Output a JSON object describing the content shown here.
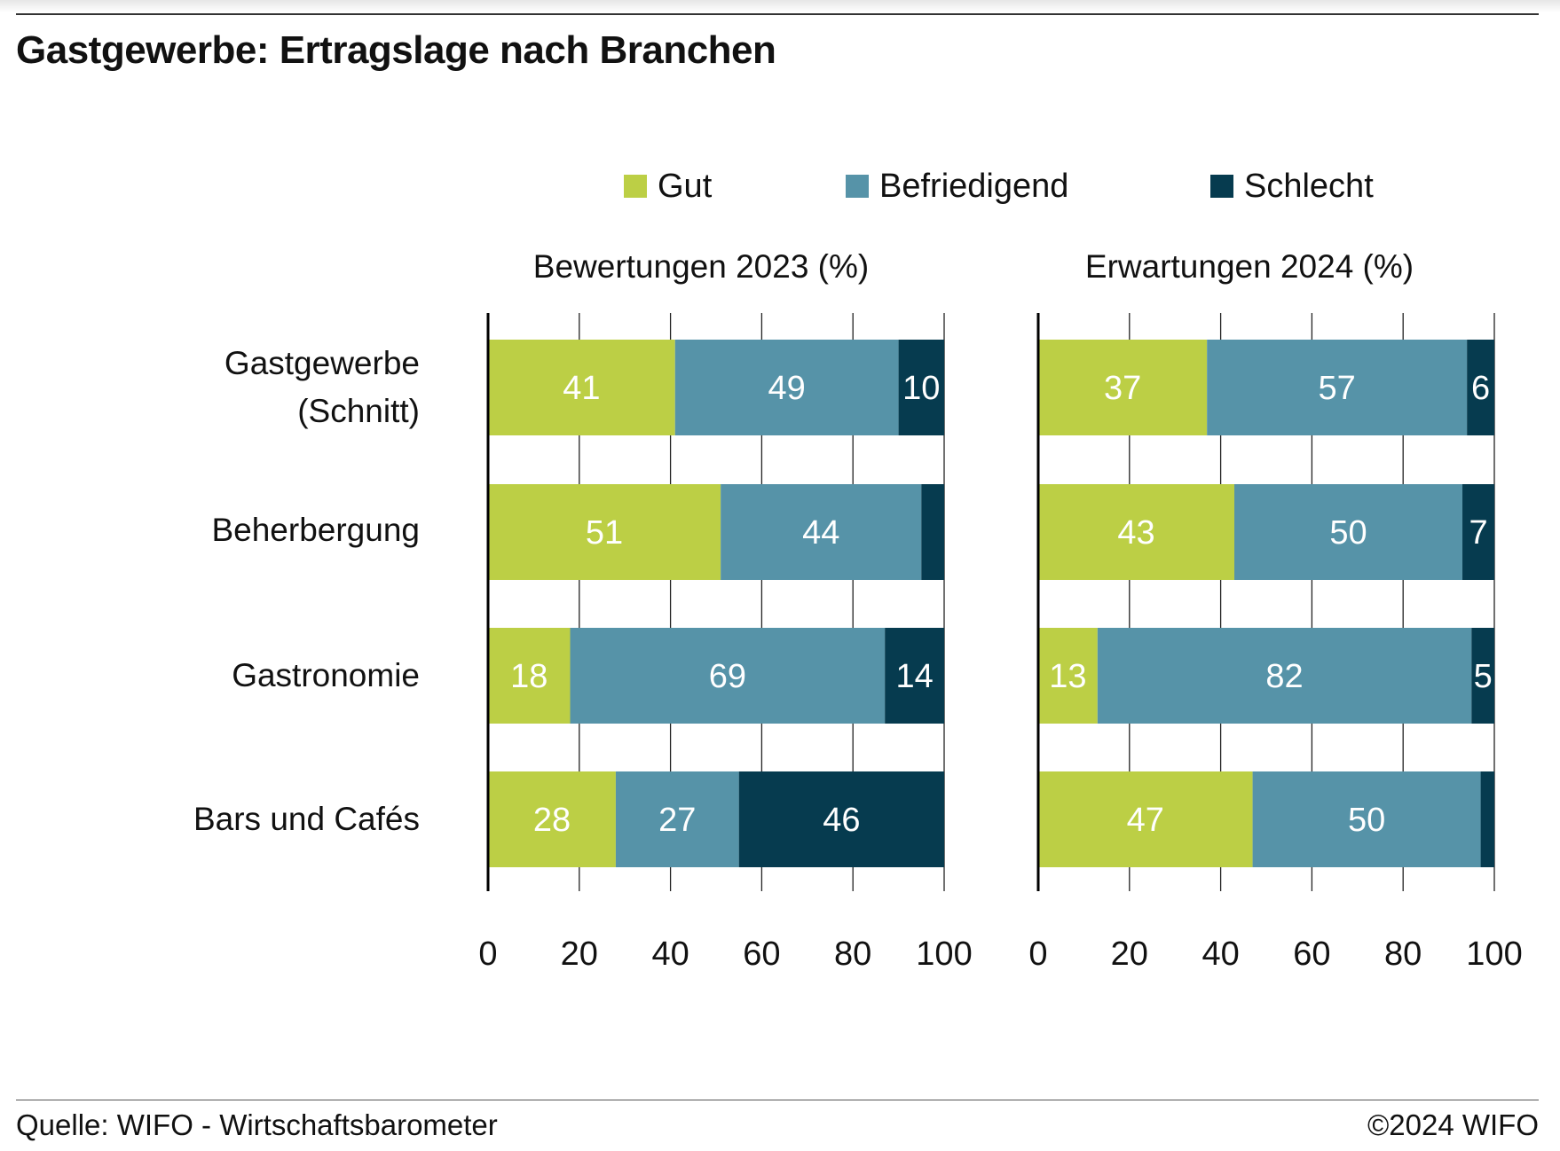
{
  "title": "Gastgewerbe: Ertragslage nach Branchen",
  "footer": {
    "source": "Quelle: WIFO - Wirtschaftsbarometer",
    "copyright": "©2024 WIFO"
  },
  "legend": [
    {
      "label": "Gut",
      "color": "#bccf45"
    },
    {
      "label": "Befriedigend",
      "color": "#5693a8"
    },
    {
      "label": "Schlecht",
      "color": "#063b4f"
    }
  ],
  "categories_display": [
    "Gastgewerbe\n(Schnitt)",
    "Beherbergung",
    "Gastronomie",
    "Bars und Cafés"
  ],
  "chart_data": [
    {
      "type": "bar",
      "orientation": "horizontal",
      "stacked": true,
      "title": "Bewertungen 2023 (%)",
      "categories": [
        "Gastgewerbe (Schnitt)",
        "Beherbergung",
        "Gastronomie",
        "Bars und Cafés"
      ],
      "series": [
        {
          "name": "Gut",
          "color": "#bccf45",
          "values": [
            41,
            51,
            18,
            28
          ],
          "labels": [
            "41",
            "51",
            "18",
            "28"
          ]
        },
        {
          "name": "Befriedigend",
          "color": "#5693a8",
          "values": [
            49,
            44,
            69,
            27
          ],
          "labels": [
            "49",
            "44",
            "69",
            "27"
          ]
        },
        {
          "name": "Schlecht",
          "color": "#063b4f",
          "values": [
            10,
            5,
            14,
            46
          ],
          "labels": [
            "10",
            "",
            "14",
            "46"
          ]
        }
      ],
      "xlim": [
        0,
        100
      ],
      "xticks": [
        0,
        20,
        40,
        60,
        80,
        100
      ],
      "grid": true
    },
    {
      "type": "bar",
      "orientation": "horizontal",
      "stacked": true,
      "title": "Erwartungen 2024 (%)",
      "categories": [
        "Gastgewerbe (Schnitt)",
        "Beherbergung",
        "Gastronomie",
        "Bars und Cafés"
      ],
      "series": [
        {
          "name": "Gut",
          "color": "#bccf45",
          "values": [
            37,
            43,
            13,
            47
          ],
          "labels": [
            "37",
            "43",
            "13",
            "47"
          ]
        },
        {
          "name": "Befriedigend",
          "color": "#5693a8",
          "values": [
            57,
            50,
            82,
            50
          ],
          "labels": [
            "57",
            "50",
            "82",
            "50"
          ]
        },
        {
          "name": "Schlecht",
          "color": "#063b4f",
          "values": [
            6,
            7,
            5,
            3
          ],
          "labels": [
            "6",
            "7",
            "5",
            ""
          ]
        }
      ],
      "xlim": [
        0,
        100
      ],
      "xticks": [
        0,
        20,
        40,
        60,
        80,
        100
      ],
      "grid": true
    }
  ]
}
